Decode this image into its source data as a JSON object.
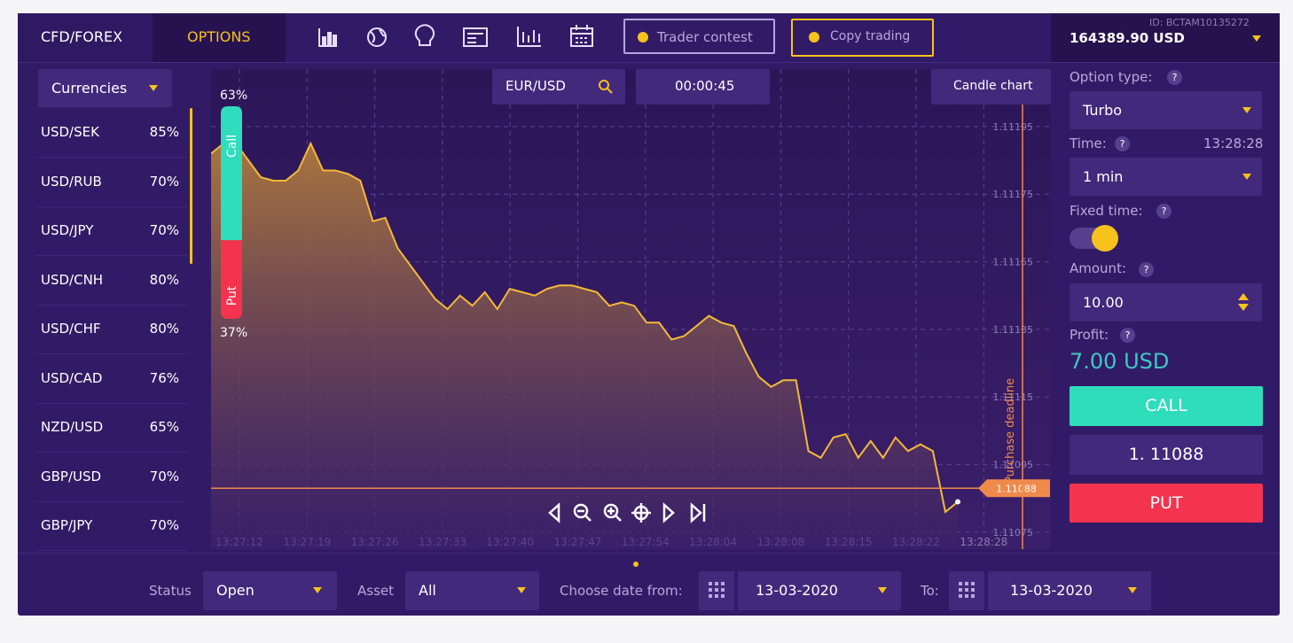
{
  "top_bar": {
    "tabs": [
      "CFD/FOREX",
      "OPTIONS"
    ],
    "buttons": [
      "Trader contest",
      "Copy trading"
    ],
    "account_id": "ID: BCTAM10135272",
    "balance": "164389.90 USD"
  },
  "asset_list": {
    "filter": "Currencies",
    "rows": [
      [
        "USD/SEK",
        "85%"
      ],
      [
        "USD/RUB",
        "70%"
      ],
      [
        "USD/JPY",
        "70%"
      ],
      [
        "USD/CNH",
        "80%"
      ],
      [
        "USD/CHF",
        "80%"
      ],
      [
        "USD/CAD",
        "76%"
      ],
      [
        "NZD/USD",
        "65%"
      ],
      [
        "GBP/USD",
        "70%"
      ],
      [
        "GBP/JPY",
        "70%"
      ]
    ]
  },
  "chart": {
    "type": "line",
    "pair": "EUR/USD",
    "timer": "00:00:45",
    "chart_type": "Candle chart",
    "color": "#f5b83a",
    "ylim": [
      1.1107,
      1.11212
    ],
    "yticks": [
      1.11195,
      1.11175,
      1.11155,
      1.11135,
      1.11115,
      1.11095,
      1.11075
    ],
    "x_labels": [
      "13:27:12",
      "13:27:19",
      "13:27:26",
      "13:27:33",
      "13:27:40",
      "13:27:47",
      "13:27:54",
      "13:28:04",
      "13:28:08",
      "13:28:15",
      "13:28:22",
      "13:28:28"
    ],
    "values": [
      1.11187,
      1.1119,
      1.1119,
      1.11185,
      1.1118,
      1.11179,
      1.11179,
      1.11182,
      1.1119,
      1.11182,
      1.11182,
      1.11181,
      1.11179,
      1.11167,
      1.11168,
      1.11159,
      1.11154,
      1.11149,
      1.11144,
      1.11141,
      1.11145,
      1.11142,
      1.11146,
      1.11141,
      1.11147,
      1.11146,
      1.11145,
      1.11147,
      1.11148,
      1.11148,
      1.11147,
      1.11146,
      1.11142,
      1.11143,
      1.11142,
      1.11137,
      1.11137,
      1.11132,
      1.11133,
      1.11136,
      1.11139,
      1.11137,
      1.11136,
      1.11128,
      1.11121,
      1.11118,
      1.1112,
      1.1112,
      1.11099,
      1.11097,
      1.11103,
      1.11104,
      1.11097,
      1.11102,
      1.11097,
      1.11103,
      1.11099,
      1.11101,
      1.11099,
      1.11081,
      1.11084
    ],
    "current_price": 1.11088,
    "deadline_label": "Purchase deadline",
    "sentiment": {
      "labels": [
        "Call",
        "Put"
      ],
      "values": [
        63,
        37
      ],
      "value_labels": [
        "63%",
        "37%"
      ]
    }
  },
  "option_panel": {
    "help_icon": "?",
    "option_type_label": "Option type:",
    "option_type": "Turbo",
    "time_label": "Time:",
    "time": "13:28:28",
    "duration": "1 min",
    "fixed_time_label": "Fixed time:",
    "amount_label": "Amount:",
    "amount": "10.00",
    "profit_label": "Profit:",
    "profit": "7.00 USD",
    "call_button": "CALL",
    "price": "1. 11088",
    "put_button": "PUT"
  },
  "filters": {
    "status_label": "Status",
    "status": "Open",
    "asset_label": "Asset",
    "asset": "All",
    "date_from_label": "Choose date from:",
    "date_from": "13-03-2020",
    "date_to_label": "To:",
    "date_to": "13-03-2020"
  }
}
